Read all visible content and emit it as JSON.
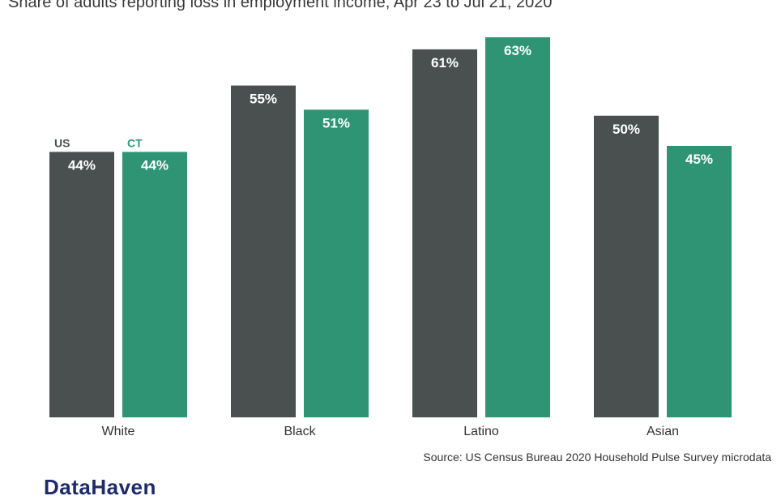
{
  "subtitle": "Share of adults reporting loss in employment income, Apr 23 to Jul 21, 2020",
  "source": "Source: US Census Bureau 2020 Household Pulse Survey microdata",
  "logo": "DataHaven",
  "colors": {
    "US": "#4a5050",
    "CT": "#2e9474"
  },
  "chart_data": {
    "type": "bar",
    "title": "Share of adults reporting loss in employment income, Apr 23 to Jul 21, 2020",
    "categories": [
      "White",
      "Black",
      "Latino",
      "Asian"
    ],
    "series": [
      {
        "name": "US",
        "values": [
          44,
          55,
          61,
          50
        ],
        "color": "#4a5050"
      },
      {
        "name": "CT",
        "values": [
          44,
          51,
          63,
          45
        ],
        "color": "#2e9474"
      }
    ],
    "value_labels": [
      [
        "44%",
        "55%",
        "61%",
        "50%"
      ],
      [
        "44%",
        "51%",
        "63%",
        "45%"
      ]
    ],
    "ylim": [
      0,
      63
    ],
    "grid": false,
    "legend": "direct labels above first group"
  }
}
